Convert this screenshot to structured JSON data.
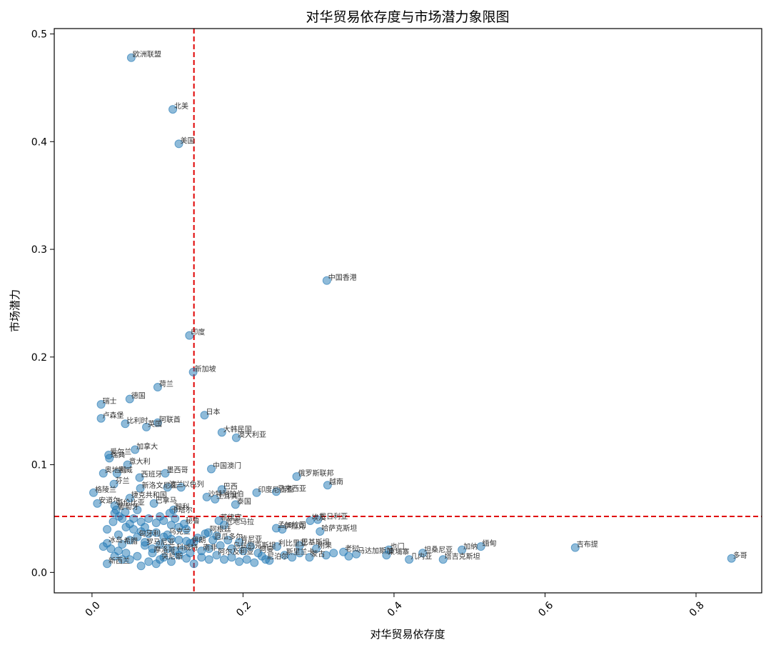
{
  "chart_data": {
    "type": "scatter",
    "title": "对华贸易依存度与市场潜力象限图",
    "xlabel": "对华贸易依存度",
    "ylabel": "市场潜力",
    "xlim": [
      -0.05,
      0.887
    ],
    "ylim": [
      -0.019,
      0.505
    ],
    "x_ticks": [
      0.0,
      0.2,
      0.4,
      0.6,
      0.8
    ],
    "x_tick_labels": [
      "0.0",
      "0.2",
      "0.4",
      "0.6",
      "0.8"
    ],
    "y_ticks": [
      0.0,
      0.1,
      0.2,
      0.3,
      0.4,
      0.5
    ],
    "y_tick_labels": [
      "0.0",
      "0.1",
      "0.2",
      "0.3",
      "0.4",
      "0.5"
    ],
    "x_tick_rotation": 45,
    "grid": false,
    "reference_lines": {
      "x": 0.135,
      "y": 0.052,
      "color": "#e00000",
      "style": "dashed"
    },
    "point_color": "#1f77b4",
    "labeled_points": [
      {
        "label": "欧洲联盟",
        "x": 0.052,
        "y": 0.478
      },
      {
        "label": "北美",
        "x": 0.107,
        "y": 0.43
      },
      {
        "label": "美国",
        "x": 0.115,
        "y": 0.398
      },
      {
        "label": "中国香港",
        "x": 0.311,
        "y": 0.271
      },
      {
        "label": "印度",
        "x": 0.129,
        "y": 0.22
      },
      {
        "label": "新加坡",
        "x": 0.134,
        "y": 0.186
      },
      {
        "label": "荷兰",
        "x": 0.087,
        "y": 0.172
      },
      {
        "label": "瑞士",
        "x": 0.012,
        "y": 0.156
      },
      {
        "label": "德国",
        "x": 0.05,
        "y": 0.161
      },
      {
        "label": "卢森堡",
        "x": 0.012,
        "y": 0.143
      },
      {
        "label": "比利时",
        "x": 0.044,
        "y": 0.138
      },
      {
        "label": "阿联酋",
        "x": 0.087,
        "y": 0.139
      },
      {
        "label": "英国",
        "x": 0.072,
        "y": 0.135
      },
      {
        "label": "日本",
        "x": 0.149,
        "y": 0.146
      },
      {
        "label": "大韩民国",
        "x": 0.172,
        "y": 0.13
      },
      {
        "label": "澳大利亚",
        "x": 0.191,
        "y": 0.125
      },
      {
        "label": "加拿大",
        "x": 0.057,
        "y": 0.114
      },
      {
        "label": "爱尔兰",
        "x": 0.022,
        "y": 0.109
      },
      {
        "label": "瑞典",
        "x": 0.023,
        "y": 0.106
      },
      {
        "label": "意大利",
        "x": 0.047,
        "y": 0.1
      },
      {
        "label": "中国澳门",
        "x": 0.158,
        "y": 0.096
      },
      {
        "label": "奥地利",
        "x": 0.015,
        "y": 0.092
      },
      {
        "label": "挪威",
        "x": 0.033,
        "y": 0.092
      },
      {
        "label": "墨西哥",
        "x": 0.097,
        "y": 0.092
      },
      {
        "label": "西班牙",
        "x": 0.063,
        "y": 0.088
      },
      {
        "label": "俄罗斯联邦",
        "x": 0.271,
        "y": 0.089
      },
      {
        "label": "越南",
        "x": 0.312,
        "y": 0.081
      },
      {
        "label": "芬兰",
        "x": 0.029,
        "y": 0.082
      },
      {
        "label": "新洛文尼亚",
        "x": 0.064,
        "y": 0.078
      },
      {
        "label": "波兰",
        "x": 0.1,
        "y": 0.079
      },
      {
        "label": "以色列",
        "x": 0.118,
        "y": 0.079
      },
      {
        "label": "巴西",
        "x": 0.172,
        "y": 0.077
      },
      {
        "label": "印度尼西亚",
        "x": 0.218,
        "y": 0.074
      },
      {
        "label": "马来西亚",
        "x": 0.244,
        "y": 0.075
      },
      {
        "label": "格陵兰",
        "x": 0.002,
        "y": 0.074
      },
      {
        "label": "捷克共和国",
        "x": 0.05,
        "y": 0.069
      },
      {
        "label": "沙特阿拉伯",
        "x": 0.152,
        "y": 0.07
      },
      {
        "label": "土耳其",
        "x": 0.163,
        "y": 0.068
      },
      {
        "label": "泰国",
        "x": 0.19,
        "y": 0.063
      },
      {
        "label": "安道尔",
        "x": 0.007,
        "y": 0.064
      },
      {
        "label": "哥伦比亚",
        "x": 0.03,
        "y": 0.062
      },
      {
        "label": "巴拿马",
        "x": 0.082,
        "y": 0.064
      },
      {
        "label": "葡萄牙",
        "x": 0.032,
        "y": 0.058
      },
      {
        "label": "卡塔尔",
        "x": 0.103,
        "y": 0.055
      },
      {
        "label": "智利",
        "x": 0.108,
        "y": 0.058
      },
      {
        "label": "菲律宾",
        "x": 0.168,
        "y": 0.048
      },
      {
        "label": "尼日利亚",
        "x": 0.299,
        "y": 0.049
      },
      {
        "label": "埃及",
        "x": 0.289,
        "y": 0.048
      },
      {
        "label": "危地马拉",
        "x": 0.175,
        "y": 0.044
      },
      {
        "label": "秘鲁",
        "x": 0.122,
        "y": 0.045
      },
      {
        "label": "孟加拉国",
        "x": 0.244,
        "y": 0.041
      },
      {
        "label": "伊拉克",
        "x": 0.252,
        "y": 0.04
      },
      {
        "label": "哈萨克斯坦",
        "x": 0.302,
        "y": 0.038
      },
      {
        "label": "阿根廷",
        "x": 0.154,
        "y": 0.037
      },
      {
        "label": "巴基斯坦",
        "x": 0.275,
        "y": 0.025
      },
      {
        "label": "也门",
        "x": 0.393,
        "y": 0.021
      },
      {
        "label": "坦桑尼亚",
        "x": 0.438,
        "y": 0.018
      },
      {
        "label": "加纳",
        "x": 0.49,
        "y": 0.021
      },
      {
        "label": "缅甸",
        "x": 0.515,
        "y": 0.024
      },
      {
        "label": "吉布提",
        "x": 0.64,
        "y": 0.023
      },
      {
        "label": "多哥",
        "x": 0.847,
        "y": 0.013
      },
      {
        "label": "柬埔寨",
        "x": 0.39,
        "y": 0.016
      },
      {
        "label": "几内亚",
        "x": 0.42,
        "y": 0.012
      },
      {
        "label": "塔吉克斯坦",
        "x": 0.465,
        "y": 0.012
      },
      {
        "label": "马达加斯加",
        "x": 0.35,
        "y": 0.017
      },
      {
        "label": "老挝",
        "x": 0.333,
        "y": 0.019
      },
      {
        "label": "刚果",
        "x": 0.297,
        "y": 0.022
      },
      {
        "label": "利比里亚",
        "x": 0.245,
        "y": 0.024
      },
      {
        "label": "蒙古",
        "x": 0.288,
        "y": 0.014
      },
      {
        "label": "斯里兰卡",
        "x": 0.255,
        "y": 0.016
      },
      {
        "label": "阿曼",
        "x": 0.22,
        "y": 0.018
      },
      {
        "label": "乌兹别克斯坦",
        "x": 0.185,
        "y": 0.022
      },
      {
        "label": "肯尼亚",
        "x": 0.195,
        "y": 0.028
      },
      {
        "label": "尼泊尔",
        "x": 0.23,
        "y": 0.012
      },
      {
        "label": "厄瓜多尔",
        "x": 0.16,
        "y": 0.03
      },
      {
        "label": "新西兰",
        "x": 0.02,
        "y": 0.008
      },
      {
        "label": "冰岛",
        "x": 0.02,
        "y": 0.027
      },
      {
        "label": "希腊",
        "x": 0.04,
        "y": 0.026
      },
      {
        "label": "罗马尼亚",
        "x": 0.07,
        "y": 0.025
      },
      {
        "label": "匈牙利",
        "x": 0.06,
        "y": 0.033
      },
      {
        "label": "乌克兰",
        "x": 0.1,
        "y": 0.035
      },
      {
        "label": "伊朗",
        "x": 0.13,
        "y": 0.027
      },
      {
        "label": "科威特",
        "x": 0.11,
        "y": 0.02
      },
      {
        "label": "南非",
        "x": 0.145,
        "y": 0.02
      },
      {
        "label": "摩洛哥",
        "x": 0.08,
        "y": 0.018
      },
      {
        "label": "突尼斯",
        "x": 0.09,
        "y": 0.012
      },
      {
        "label": "阿尔及利亚",
        "x": 0.165,
        "y": 0.016
      }
    ],
    "unlabeled_points": [
      [
        0.03,
        0.055
      ],
      [
        0.04,
        0.05
      ],
      [
        0.055,
        0.05
      ],
      [
        0.065,
        0.047
      ],
      [
        0.075,
        0.05
      ],
      [
        0.085,
        0.046
      ],
      [
        0.095,
        0.048
      ],
      [
        0.105,
        0.044
      ],
      [
        0.115,
        0.042
      ],
      [
        0.125,
        0.04
      ],
      [
        0.045,
        0.042
      ],
      [
        0.055,
        0.04
      ],
      [
        0.065,
        0.038
      ],
      [
        0.075,
        0.036
      ],
      [
        0.085,
        0.037
      ],
      [
        0.095,
        0.033
      ],
      [
        0.105,
        0.031
      ],
      [
        0.115,
        0.03
      ],
      [
        0.125,
        0.029
      ],
      [
        0.135,
        0.028
      ],
      [
        0.025,
        0.022
      ],
      [
        0.035,
        0.02
      ],
      [
        0.045,
        0.018
      ],
      [
        0.05,
        0.012
      ],
      [
        0.06,
        0.015
      ],
      [
        0.065,
        0.006
      ],
      [
        0.075,
        0.01
      ],
      [
        0.085,
        0.008
      ],
      [
        0.095,
        0.014
      ],
      [
        0.105,
        0.01
      ],
      [
        0.115,
        0.016
      ],
      [
        0.125,
        0.013
      ],
      [
        0.135,
        0.008
      ],
      [
        0.145,
        0.014
      ],
      [
        0.155,
        0.012
      ],
      [
        0.175,
        0.012
      ],
      [
        0.185,
        0.014
      ],
      [
        0.195,
        0.01
      ],
      [
        0.205,
        0.012
      ],
      [
        0.215,
        0.009
      ],
      [
        0.225,
        0.015
      ],
      [
        0.235,
        0.011
      ],
      [
        0.265,
        0.014
      ],
      [
        0.275,
        0.018
      ],
      [
        0.31,
        0.016
      ],
      [
        0.32,
        0.018
      ],
      [
        0.34,
        0.015
      ],
      [
        0.2,
        0.02
      ],
      [
        0.21,
        0.024
      ],
      [
        0.17,
        0.025
      ],
      [
        0.155,
        0.022
      ],
      [
        0.14,
        0.032
      ],
      [
        0.15,
        0.036
      ],
      [
        0.165,
        0.034
      ],
      [
        0.18,
        0.03
      ],
      [
        0.02,
        0.04
      ],
      [
        0.035,
        0.035
      ],
      [
        0.05,
        0.03
      ],
      [
        0.07,
        0.028
      ],
      [
        0.08,
        0.022
      ],
      [
        0.09,
        0.026
      ],
      [
        0.1,
        0.022
      ],
      [
        0.12,
        0.021
      ],
      [
        0.13,
        0.018
      ],
      [
        0.04,
        0.012
      ],
      [
        0.03,
        0.015
      ],
      [
        0.015,
        0.024
      ],
      [
        0.028,
        0.047
      ],
      [
        0.044,
        0.056
      ],
      [
        0.06,
        0.058
      ],
      [
        0.036,
        0.052
      ],
      [
        0.05,
        0.045
      ],
      [
        0.09,
        0.052
      ],
      [
        0.07,
        0.042
      ],
      [
        0.11,
        0.05
      ]
    ]
  }
}
